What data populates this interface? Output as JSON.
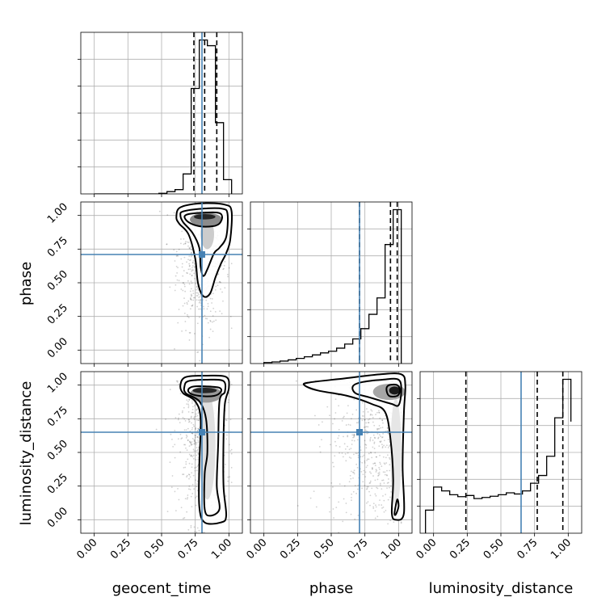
{
  "chart_data": {
    "type": "corner",
    "parameters": [
      "geocent_time",
      "phase",
      "luminosity_distance"
    ],
    "tick_labels": [
      "0.00",
      "0.25",
      "0.50",
      "0.75",
      "1.00"
    ],
    "xlim": [
      -0.1,
      1.1
    ],
    "truths": {
      "geocent_time": 0.8,
      "phase": 0.71,
      "luminosity_distance": 0.65
    },
    "colors": {
      "truth": "#4682b4",
      "line": "#000000",
      "grid": "#b0b0b0"
    },
    "marginals": [
      {
        "parameter": "geocent_time",
        "quantiles": [
          0.74,
          0.82,
          0.91
        ],
        "bin_edges": [
          0.0,
          0.06,
          0.12,
          0.18,
          0.24,
          0.3,
          0.36,
          0.42,
          0.48,
          0.54,
          0.6,
          0.66,
          0.72,
          0.78,
          0.84,
          0.9,
          0.96,
          1.02
        ],
        "counts": [
          0,
          0,
          0,
          0,
          0,
          0,
          0,
          0,
          0.2,
          0.8,
          1.5,
          7,
          37,
          54,
          52,
          25,
          5
        ]
      },
      {
        "parameter": "phase",
        "quantiles": [
          0.71,
          0.94,
          0.99
        ],
        "bin_edges": [
          0.0,
          0.06,
          0.12,
          0.18,
          0.24,
          0.3,
          0.36,
          0.42,
          0.48,
          0.54,
          0.6,
          0.66,
          0.72,
          0.78,
          0.84,
          0.9,
          0.96,
          1.02
        ],
        "counts": [
          0.5,
          0.8,
          1.2,
          1.8,
          2.5,
          3.3,
          4.2,
          5.2,
          6.0,
          7.5,
          9.5,
          12,
          17,
          24,
          32,
          58,
          75
        ]
      },
      {
        "parameter": "luminosity_distance",
        "quantiles": [
          0.24,
          0.77,
          0.96
        ],
        "bin_edges": [
          -0.06,
          0.0,
          0.06,
          0.12,
          0.18,
          0.24,
          0.3,
          0.36,
          0.42,
          0.48,
          0.54,
          0.6,
          0.66,
          0.72,
          0.78,
          0.84,
          0.9,
          0.96,
          1.02
        ],
        "counts": [
          6,
          12,
          11,
          10,
          9.5,
          9.8,
          9,
          9.3,
          9.6,
          10,
          10.5,
          10.2,
          11,
          13,
          15,
          20,
          30,
          40,
          29
        ]
      }
    ],
    "joints": [
      {
        "x": "geocent_time",
        "y": "phase",
        "blobs": [
          {
            "cx": 0.82,
            "cy": 0.99,
            "rx": 0.08,
            "ry": 0.02,
            "level": 0.85
          },
          {
            "cx": 0.83,
            "cy": 0.97,
            "rx": 0.12,
            "ry": 0.05,
            "level": 0.45
          },
          {
            "cx": 0.84,
            "cy": 0.86,
            "rx": 0.05,
            "ry": 0.11,
            "level": 0.2
          }
        ],
        "contours": [
          {
            "points": [
              [
                0.67,
                0.99
              ],
              [
                0.7,
                1.01
              ],
              [
                0.8,
                1.02
              ],
              [
                0.92,
                1.02
              ],
              [
                0.95,
                0.99
              ],
              [
                0.93,
                0.94
              ],
              [
                0.88,
                0.92
              ],
              [
                0.78,
                0.92
              ],
              [
                0.7,
                0.95
              ]
            ]
          },
          {
            "points": [
              [
                0.64,
                1.0
              ],
              [
                0.66,
                1.03
              ],
              [
                0.8,
                1.05
              ],
              [
                0.95,
                1.05
              ],
              [
                0.99,
                1.01
              ],
              [
                0.98,
                0.84
              ],
              [
                0.93,
                0.76
              ],
              [
                0.89,
                0.72
              ],
              [
                0.84,
                0.6
              ],
              [
                0.81,
                0.55
              ],
              [
                0.79,
                0.62
              ],
              [
                0.78,
                0.76
              ],
              [
                0.73,
                0.87
              ],
              [
                0.66,
                0.95
              ]
            ]
          },
          {
            "points": [
              [
                0.61,
                0.99
              ],
              [
                0.64,
                1.06
              ],
              [
                0.8,
                1.09
              ],
              [
                0.97,
                1.08
              ],
              [
                1.02,
                1.03
              ],
              [
                1.01,
                0.82
              ],
              [
                0.98,
                0.72
              ],
              [
                0.94,
                0.64
              ],
              [
                0.9,
                0.54
              ],
              [
                0.86,
                0.42
              ],
              [
                0.81,
                0.4
              ],
              [
                0.77,
                0.5
              ],
              [
                0.75,
                0.68
              ],
              [
                0.7,
                0.86
              ],
              [
                0.63,
                0.94
              ]
            ]
          }
        ],
        "scatter": {
          "x_mean": 0.8,
          "x_sd": 0.09,
          "y_mean": 0.72,
          "y_sd": 0.28,
          "n": 700
        }
      },
      {
        "x": "geocent_time",
        "y": "luminosity_distance",
        "blobs": [
          {
            "cx": 0.82,
            "cy": 0.96,
            "rx": 0.09,
            "ry": 0.02,
            "level": 0.85
          },
          {
            "cx": 0.83,
            "cy": 0.93,
            "rx": 0.12,
            "ry": 0.06,
            "level": 0.4
          },
          {
            "cx": 0.84,
            "cy": 0.55,
            "rx": 0.06,
            "ry": 0.4,
            "level": 0.12
          }
        ],
        "contours": [
          {
            "points": [
              [
                0.7,
                0.97
              ],
              [
                0.74,
                0.99
              ],
              [
                0.84,
                0.99
              ],
              [
                0.93,
                0.98
              ],
              [
                0.94,
                0.95
              ],
              [
                0.89,
                0.92
              ],
              [
                0.78,
                0.92
              ],
              [
                0.71,
                0.94
              ]
            ]
          },
          {
            "points": [
              [
                0.67,
                0.99
              ],
              [
                0.7,
                1.03
              ],
              [
                0.84,
                1.04
              ],
              [
                0.96,
                1.03
              ],
              [
                0.97,
                0.95
              ],
              [
                0.93,
                0.88
              ],
              [
                0.92,
                0.55
              ],
              [
                0.91,
                0.25
              ],
              [
                0.93,
                0.08
              ],
              [
                0.86,
                0.03
              ],
              [
                0.82,
                0.08
              ],
              [
                0.82,
                0.34
              ],
              [
                0.84,
                0.5
              ],
              [
                0.83,
                0.75
              ],
              [
                0.78,
                0.88
              ],
              [
                0.68,
                0.94
              ]
            ]
          },
          {
            "points": [
              [
                0.64,
                1.0
              ],
              [
                0.68,
                1.06
              ],
              [
                0.84,
                1.07
              ],
              [
                0.98,
                1.06
              ],
              [
                1.0,
                0.98
              ],
              [
                0.97,
                0.86
              ],
              [
                0.96,
                0.6
              ],
              [
                0.96,
                0.25
              ],
              [
                0.98,
                0.03
              ],
              [
                0.94,
                -0.02
              ],
              [
                0.82,
                -0.02
              ],
              [
                0.78,
                0.1
              ],
              [
                0.78,
                0.4
              ],
              [
                0.79,
                0.75
              ],
              [
                0.75,
                0.88
              ],
              [
                0.66,
                0.94
              ]
            ]
          }
        ],
        "scatter": {
          "x_mean": 0.8,
          "x_sd": 0.09,
          "y_mean": 0.62,
          "y_sd": 0.32,
          "n": 700
        }
      },
      {
        "x": "phase",
        "y": "luminosity_distance",
        "blobs": [
          {
            "cx": 0.97,
            "cy": 0.96,
            "rx": 0.04,
            "ry": 0.03,
            "level": 0.9
          },
          {
            "cx": 0.93,
            "cy": 0.95,
            "rx": 0.12,
            "ry": 0.06,
            "level": 0.35
          },
          {
            "cx": 0.98,
            "cy": 0.5,
            "rx": 0.04,
            "ry": 0.4,
            "level": 0.1
          }
        ],
        "contours": [
          {
            "points": [
              [
                0.91,
                0.97
              ],
              [
                0.93,
                1.0
              ],
              [
                0.99,
                1.0
              ],
              [
                1.01,
                0.96
              ],
              [
                0.99,
                0.92
              ],
              [
                0.93,
                0.92
              ]
            ]
          },
          {
            "points": [
              [
                0.66,
                0.99
              ],
              [
                0.72,
                1.02
              ],
              [
                0.88,
                1.04
              ],
              [
                1.0,
                1.04
              ],
              [
                1.02,
                0.95
              ],
              [
                1.0,
                0.85
              ],
              [
                0.95,
                0.86
              ],
              [
                0.88,
                0.88
              ],
              [
                0.78,
                0.91
              ],
              [
                0.68,
                0.94
              ]
            ]
          },
          {
            "points": [
              [
                0.3,
                1.0
              ],
              [
                0.34,
                1.02
              ],
              [
                0.6,
                1.05
              ],
              [
                0.86,
                1.08
              ],
              [
                1.02,
                1.08
              ],
              [
                1.05,
                1.0
              ],
              [
                1.04,
                0.8
              ],
              [
                1.03,
                0.4
              ],
              [
                1.04,
                0.05
              ],
              [
                0.98,
                0.0
              ],
              [
                0.95,
                0.05
              ],
              [
                0.96,
                0.3
              ],
              [
                0.94,
                0.6
              ],
              [
                0.9,
                0.8
              ],
              [
                0.8,
                0.86
              ],
              [
                0.62,
                0.92
              ],
              [
                0.4,
                0.96
              ]
            ]
          },
          {
            "points": [
              [
                0.97,
                0.05
              ],
              [
                0.99,
                0.15
              ],
              [
                1.0,
                0.1
              ],
              [
                0.98,
                0.04
              ]
            ]
          }
        ],
        "scatter": {
          "x_mean": 0.85,
          "x_sd": 0.18,
          "y_mean": 0.6,
          "y_sd": 0.33,
          "n": 700
        }
      }
    ]
  }
}
